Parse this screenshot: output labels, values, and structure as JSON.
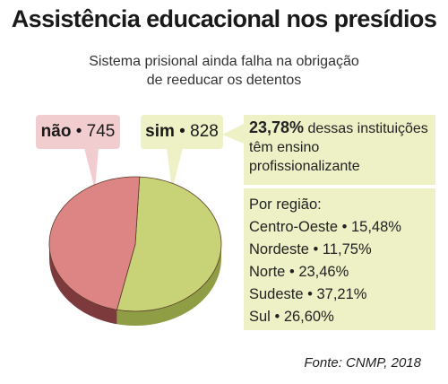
{
  "title": "Assistência educacional nos presídios",
  "subtitle_line1": "Sistema prisional ainda falha na obrigação",
  "subtitle_line2": "de reeducar os detentos",
  "chart_data": {
    "type": "pie",
    "title": "Assistência educacional nos presídios",
    "slices": [
      {
        "name": "não",
        "value": 745,
        "color": "#dd8584",
        "side_color": "#7d3a3c"
      },
      {
        "name": "sim",
        "value": 828,
        "color": "#c7d376",
        "side_color": "#8f9d44"
      }
    ]
  },
  "callouts": {
    "nao": {
      "label": "não",
      "value": "745"
    },
    "sim": {
      "label": "sim",
      "value": "828"
    }
  },
  "info": {
    "highlight": "23,78%",
    "text": " dessas instituições têm ensino profissionalizante"
  },
  "regions": {
    "heading": "Por região:",
    "items": [
      {
        "label": "Centro-Oeste",
        "value": "15,48%"
      },
      {
        "label": "Nordeste",
        "value": "11,75%"
      },
      {
        "label": "Norte",
        "value": "23,46%"
      },
      {
        "label": "Sudeste",
        "value": "37,21%"
      },
      {
        "label": "Sul",
        "value": "26,60%"
      }
    ]
  },
  "source": "Fonte: CNMP, 2018"
}
